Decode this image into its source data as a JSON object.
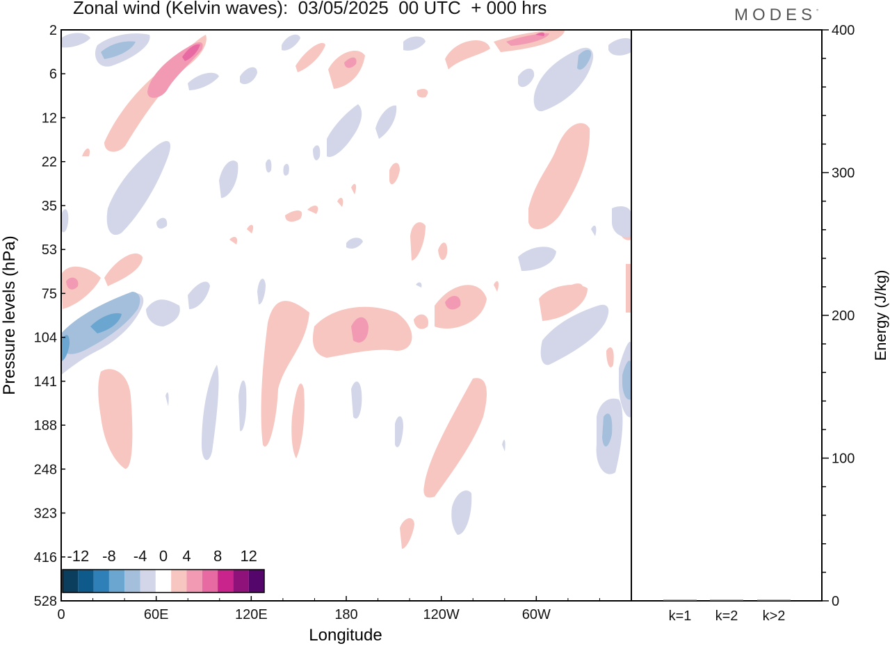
{
  "header": {
    "title": "Zonal wind (Kelvin waves):  03/05/2025  00 UTC  + 000 hrs",
    "brand": "MODES",
    "brand_mark": "°"
  },
  "chart_data": [
    {
      "type": "heatmap",
      "xlabel": "Longitude",
      "ylabel": "Pressure levels (hPa)",
      "x_ticks": [
        "0",
        "60E",
        "120E",
        "180",
        "120W",
        "60W"
      ],
      "x_tick_degrees": [
        0,
        60,
        120,
        180,
        240,
        300
      ],
      "xlim": [
        0,
        360
      ],
      "y_ticks": [
        "2",
        "6",
        "12",
        "22",
        "35",
        "53",
        "75",
        "104",
        "141",
        "188",
        "248",
        "323",
        "416",
        "528"
      ],
      "colorbar": {
        "labels": [
          "-12",
          "-8",
          "-4",
          "0",
          "4",
          "8",
          "12"
        ],
        "levels": [
          -14,
          -12,
          -10,
          -8,
          -6,
          -4,
          -2,
          2,
          4,
          6,
          8,
          10,
          12,
          14
        ],
        "colors": [
          "#0b3d5c",
          "#0e5a8a",
          "#2f7fb8",
          "#6aa6cf",
          "#a3bfdc",
          "#d2d6e8",
          "#ffffff",
          "#f7c6c0",
          "#f29ab3",
          "#e86aa2",
          "#c8248c",
          "#8e127a",
          "#54066a"
        ]
      },
      "anomalies": [
        {
          "lon": 60,
          "level": "6",
          "value": 7
        },
        {
          "lon": 80,
          "level": "3",
          "value": 9
        },
        {
          "lon": 35,
          "level": "3",
          "value": -5
        },
        {
          "lon": 30,
          "level": "104",
          "value": -6
        },
        {
          "lon": 8,
          "level": "75",
          "value": 5
        },
        {
          "lon": 185,
          "level": "104",
          "value": 5
        },
        {
          "lon": 248,
          "level": "75",
          "value": 6
        },
        {
          "lon": 322,
          "level": "3",
          "value": 6
        },
        {
          "lon": 345,
          "level": "6",
          "value": -5
        },
        {
          "lon": 355,
          "level": "141",
          "value": -5
        },
        {
          "lon": 345,
          "level": "188",
          "value": -5
        },
        {
          "lon": 285,
          "level": "35",
          "value": 3
        },
        {
          "lon": 40,
          "level": "188",
          "value": 3
        }
      ]
    },
    {
      "type": "bar",
      "ylabel": "Energy (J/kg)",
      "categories": [
        "k=1",
        "k=2",
        "k>2"
      ],
      "values": [
        0,
        0,
        0
      ],
      "ylim": [
        0,
        400
      ],
      "y_ticks": [
        "0",
        "100",
        "200",
        "300",
        "400"
      ]
    }
  ]
}
